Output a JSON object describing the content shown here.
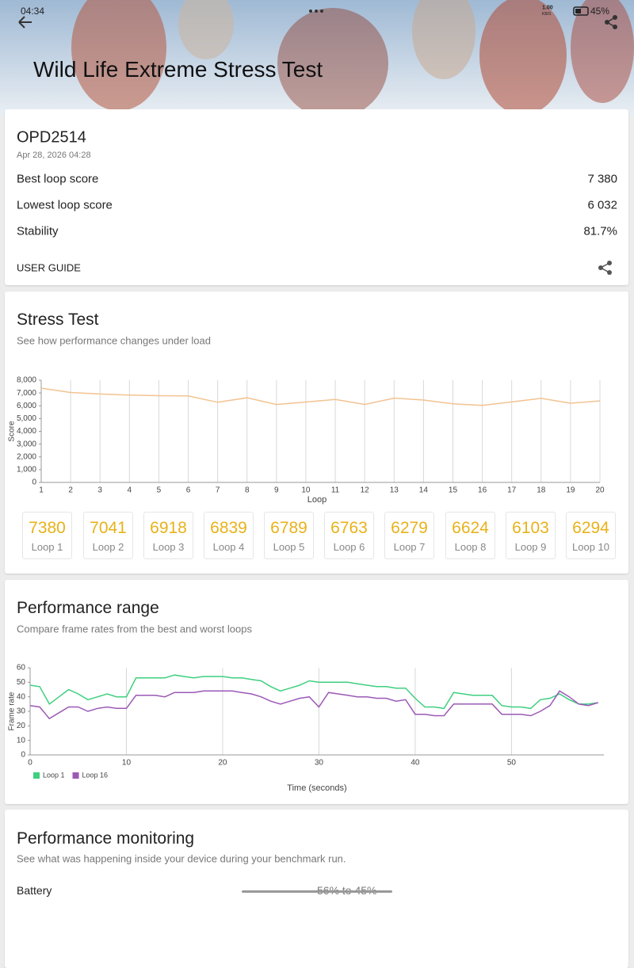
{
  "status": {
    "time": "04:34",
    "speed": "1.00",
    "speed_unit": "KB/S",
    "battery": "45%"
  },
  "header": {
    "title": "Wild Life Extreme Stress Test"
  },
  "summary": {
    "device": "OPD2514",
    "date": "Apr 28, 2026 04:28",
    "rows": [
      {
        "label": "Best loop score",
        "value": "7 380"
      },
      {
        "label": "Lowest loop score",
        "value": "6 032"
      },
      {
        "label": "Stability",
        "value": "81.7%"
      }
    ],
    "user_guide": "USER GUIDE"
  },
  "stress": {
    "title": "Stress Test",
    "subtitle": "See how performance changes under load",
    "chart_data": {
      "type": "line",
      "x": [
        1,
        2,
        3,
        4,
        5,
        6,
        7,
        8,
        9,
        10,
        11,
        12,
        13,
        14,
        15,
        16,
        17,
        18,
        19,
        20
      ],
      "values": [
        7380,
        7041,
        6918,
        6839,
        6789,
        6763,
        6279,
        6624,
        6103,
        6294,
        6500,
        6100,
        6600,
        6450,
        6150,
        6032,
        6300,
        6580,
        6200,
        6380
      ],
      "color": "#f2c391",
      "xlim": [
        1,
        20
      ],
      "xticks": [
        1,
        2,
        3,
        4,
        5,
        6,
        7,
        8,
        9,
        10,
        11,
        12,
        13,
        14,
        15,
        16,
        17,
        18,
        19,
        20
      ],
      "ylim": [
        0,
        8000
      ],
      "yticks": [
        0,
        {
          "value": 1000,
          "label": "1,000"
        },
        {
          "value": 2000,
          "label": "2,000"
        },
        {
          "value": 3000,
          "label": "3,000"
        },
        {
          "value": 4000,
          "label": "4,000"
        },
        {
          "value": 5000,
          "label": "5,000"
        },
        {
          "value": 6000,
          "label": "6,000"
        },
        {
          "value": 7000,
          "label": "7,000"
        },
        {
          "value": 8000,
          "label": "8,000"
        }
      ],
      "xlabel": "Loop",
      "ylabel": "Score",
      "grid": "x"
    },
    "loops": {
      "labels": [
        "Loop 1",
        "Loop 2",
        "Loop 3",
        "Loop 4",
        "Loop 5",
        "Loop 6",
        "Loop 7",
        "Loop 8",
        "Loop 9",
        "Loop 10"
      ]
    }
  },
  "range": {
    "title": "Performance range",
    "subtitle": "Compare frame rates from the best and worst loops",
    "chart_data": {
      "type": "line",
      "x": [
        0,
        1,
        2,
        3,
        4,
        5,
        6,
        7,
        8,
        9,
        10,
        11,
        12,
        13,
        14,
        15,
        16,
        17,
        18,
        19,
        20,
        21,
        22,
        23,
        24,
        25,
        26,
        27,
        28,
        29,
        30,
        31,
        32,
        33,
        34,
        35,
        36,
        37,
        38,
        39,
        40,
        41,
        42,
        43,
        44,
        45,
        46,
        47,
        48,
        49,
        50,
        51,
        52,
        53,
        54,
        55,
        56,
        57,
        58,
        59
      ],
      "series": [
        {
          "name": "Loop 1",
          "color": "#3fcf7f",
          "values": [
            48,
            47,
            35,
            40,
            45,
            42,
            38,
            40,
            42,
            40,
            40,
            53,
            53,
            53,
            53,
            55,
            54,
            53,
            54,
            54,
            54,
            53,
            53,
            52,
            51,
            47,
            44,
            46,
            48,
            51,
            50,
            50,
            50,
            50,
            49,
            48,
            47,
            47,
            46,
            46,
            39,
            33,
            33,
            32,
            43,
            42,
            41,
            41,
            41,
            34,
            33,
            33,
            32,
            38,
            39,
            42,
            38,
            35,
            35,
            36
          ]
        },
        {
          "name": "Loop 16",
          "color": "#9b59b6",
          "values": [
            34,
            33,
            25,
            29,
            33,
            33,
            30,
            32,
            33,
            32,
            32,
            41,
            41,
            41,
            40,
            43,
            43,
            43,
            44,
            44,
            44,
            44,
            43,
            42,
            40,
            37,
            35,
            37,
            39,
            40,
            33,
            43,
            42,
            41,
            40,
            40,
            39,
            39,
            37,
            38,
            28,
            28,
            27,
            27,
            35,
            35,
            35,
            35,
            35,
            28,
            28,
            28,
            27,
            30,
            34,
            44,
            40,
            35,
            34,
            36
          ]
        }
      ],
      "xlim": [
        0,
        59.6
      ],
      "xticks": [
        0,
        10,
        20,
        30,
        40,
        50
      ],
      "ylim": [
        0,
        60
      ],
      "yticks": [
        0,
        10,
        20,
        30,
        40,
        50,
        60
      ],
      "xlabel": "Time (seconds)",
      "ylabel": "Frame rate",
      "grid": "x"
    }
  },
  "monitoring": {
    "title": "Performance monitoring",
    "subtitle": "See what was happening inside your device during your benchmark run.",
    "rows": [
      {
        "label": "Battery",
        "value": "56% to 45%"
      }
    ]
  }
}
